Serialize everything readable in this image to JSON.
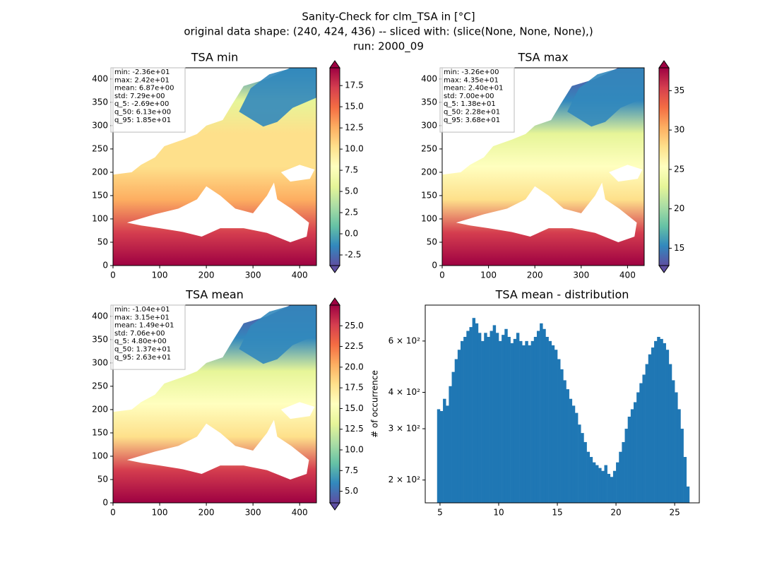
{
  "title": [
    "Sanity-Check for clm_TSA in [°C]",
    "original data shape: (240, 424, 436) -- sliced with: (slice(None, None, None),)",
    "run: 2000_09"
  ],
  "chart_data": [
    {
      "type": "heatmap",
      "title": "TSA min",
      "xlim": [
        0,
        436
      ],
      "ylim": [
        0,
        424
      ],
      "xticks": [
        0,
        100,
        200,
        300,
        400
      ],
      "yticks": [
        0,
        50,
        100,
        150,
        200,
        250,
        300,
        350,
        400
      ],
      "stats": [
        "min: -2.36e+01",
        "max: 2.42e+01",
        "mean: 6.87e+00",
        "std: 7.29e+00",
        "q_5: -2.69e+00",
        "q_50: 6.13e+00",
        "q_95: 1.85e+01"
      ],
      "colormap": "Spectral_r",
      "clim": [
        -3.75,
        19.6
      ],
      "cticks": [
        -2.5,
        {
          "value": 0,
          "label": "0.0"
        },
        2.5,
        {
          "value": 5,
          "label": "5.0"
        },
        7.5,
        {
          "value": 10,
          "label": "10.0"
        },
        12.5,
        {
          "value": 15,
          "label": "15.0"
        },
        17.5
      ]
    },
    {
      "type": "heatmap",
      "title": "TSA max",
      "xlim": [
        0,
        436
      ],
      "ylim": [
        0,
        424
      ],
      "xticks": [
        0,
        100,
        200,
        300,
        400
      ],
      "yticks": [
        0,
        50,
        100,
        150,
        200,
        250,
        300,
        350,
        400
      ],
      "stats": [
        "min: -3.26e+00",
        "max: 4.35e+01",
        "mean: 2.40e+01",
        "std: 7.00e+00",
        "q_5: 1.38e+01",
        "q_50: 2.28e+01",
        "q_95: 3.68e+01"
      ],
      "colormap": "Spectral_r",
      "clim": [
        12.8,
        37.9
      ],
      "cticks": [
        15,
        20,
        25,
        30,
        35
      ]
    },
    {
      "type": "heatmap",
      "title": "TSA mean",
      "xlim": [
        0,
        436
      ],
      "ylim": [
        0,
        424
      ],
      "xticks": [
        0,
        100,
        200,
        300,
        400
      ],
      "yticks": [
        0,
        50,
        100,
        150,
        200,
        250,
        300,
        350,
        400
      ],
      "stats": [
        "min: -1.04e+01",
        "max: 3.15e+01",
        "mean: 1.49e+01",
        "std: 7.06e+00",
        "q_5: 4.80e+00",
        "q_50: 1.37e+01",
        "q_95: 2.63e+01"
      ],
      "colormap": "Spectral_r",
      "clim": [
        3.6,
        27.5
      ],
      "cticks": [
        {
          "value": 5,
          "label": "5.0"
        },
        7.5,
        {
          "value": 10,
          "label": "10.0"
        },
        12.5,
        {
          "value": 15,
          "label": "15.0"
        },
        17.5,
        {
          "value": 20,
          "label": "20.0"
        },
        22.5,
        {
          "value": 25,
          "label": "25.0"
        }
      ]
    },
    {
      "type": "histogram",
      "title": "TSA mean - distribution",
      "ylabel": "# of occurrence",
      "color": "#1f77b4",
      "ylog": true,
      "xlim": [
        3.74,
        27.1
      ],
      "ylim": [
        167,
        797
      ],
      "xticks": [
        5,
        10,
        15,
        20,
        25
      ],
      "yticks": [
        {
          "value": 200,
          "label": "2 × 10²"
        },
        {
          "value": 300,
          "label": "3 × 10²"
        },
        {
          "value": 400,
          "label": "4 × 10²"
        },
        {
          "value": 600,
          "label": "6 × 10²"
        }
      ],
      "bins": [
        4.75,
        5,
        5.25,
        5.5,
        5.75,
        6,
        6.25,
        6.5,
        6.75,
        7,
        7.25,
        7.5,
        7.75,
        8,
        8.25,
        8.5,
        8.75,
        9,
        9.25,
        9.5,
        9.75,
        10,
        10.25,
        10.5,
        10.75,
        11,
        11.25,
        11.5,
        11.75,
        12,
        12.25,
        12.5,
        12.75,
        13,
        13.25,
        13.5,
        13.75,
        14,
        14.25,
        14.5,
        14.75,
        15,
        15.25,
        15.5,
        15.75,
        16,
        16.25,
        16.5,
        16.75,
        17,
        17.25,
        17.5,
        17.75,
        18,
        18.25,
        18.5,
        18.75,
        19,
        19.25,
        19.5,
        19.75,
        20,
        20.25,
        20.5,
        20.75,
        21,
        21.25,
        21.5,
        21.75,
        22,
        22.25,
        22.5,
        22.75,
        23,
        23.25,
        23.5,
        23.75,
        24,
        24.25,
        24.5,
        24.75,
        25,
        25.25,
        25.5,
        25.75,
        26,
        26.25
      ],
      "counts": [
        350,
        345,
        380,
        360,
        420,
        470,
        520,
        560,
        600,
        620,
        650,
        670,
        720,
        690,
        640,
        600,
        640,
        620,
        650,
        680,
        640,
        600,
        630,
        660,
        620,
        590,
        610,
        640,
        600,
        580,
        600,
        580,
        600,
        620,
        650,
        690,
        660,
        620,
        600,
        580,
        560,
        520,
        480,
        440,
        410,
        380,
        360,
        340,
        310,
        290,
        270,
        250,
        240,
        230,
        225,
        220,
        215,
        225,
        210,
        205,
        215,
        230,
        250,
        270,
        300,
        330,
        350,
        370,
        400,
        430,
        460,
        500,
        540,
        570,
        600,
        620,
        610,
        590,
        560,
        500,
        440,
        400,
        350,
        300,
        240,
        190
      ]
    }
  ]
}
